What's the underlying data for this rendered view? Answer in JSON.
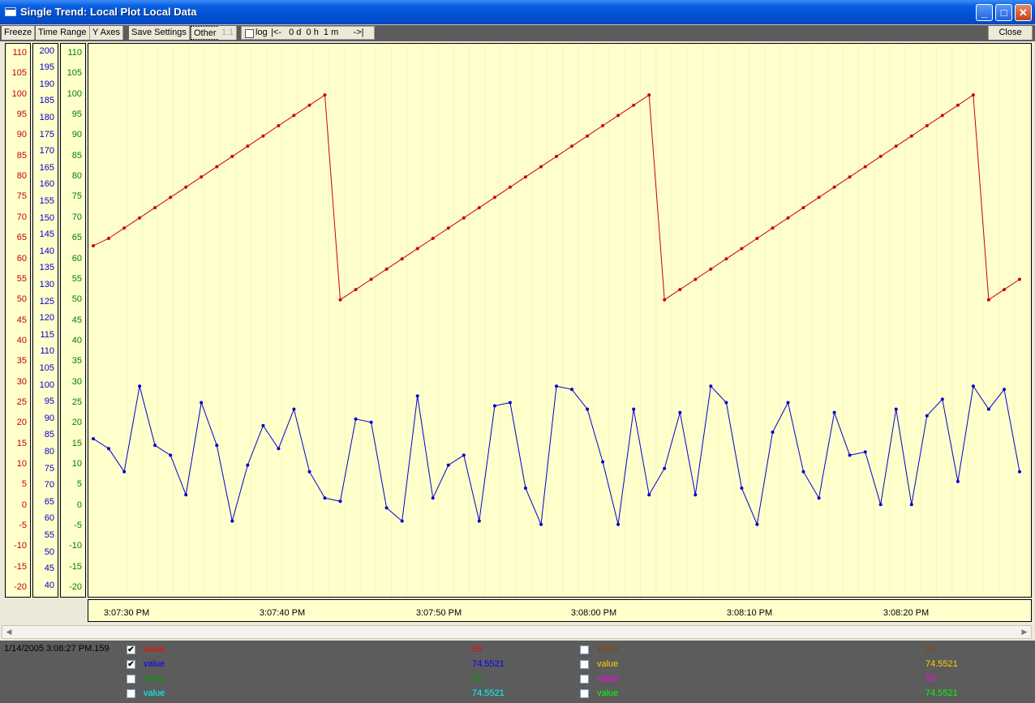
{
  "window": {
    "title": "Single Trend: Local Plot Local Data"
  },
  "toolbar": {
    "freeze": "Freeze",
    "time_range": "Time Range",
    "y_axes": "Y Axes",
    "save_settings": "Save Settings",
    "other": "Other",
    "one_to_one": "1:1",
    "log_label": "log",
    "range_text": "|<-   0 d  0 h  1 m      ->|",
    "close": "Close"
  },
  "axes": {
    "red": {
      "color": "#c00000",
      "labels": [
        "110",
        "105",
        "100",
        "95",
        "90",
        "85",
        "80",
        "75",
        "70",
        "65",
        "60",
        "55",
        "50",
        "45",
        "40",
        "35",
        "30",
        "25",
        "20",
        "15",
        "10",
        "5",
        "0",
        "-5",
        "-10",
        "-15",
        "-20"
      ]
    },
    "blue": {
      "color": "#0000cc",
      "labels": [
        "200",
        "195",
        "190",
        "185",
        "180",
        "175",
        "170",
        "165",
        "160",
        "155",
        "150",
        "145",
        "140",
        "135",
        "130",
        "125",
        "120",
        "115",
        "110",
        "105",
        "100",
        "95",
        "90",
        "85",
        "80",
        "75",
        "70",
        "65",
        "60",
        "55",
        "50",
        "45",
        "40"
      ]
    },
    "green": {
      "color": "#008000",
      "labels": [
        "110",
        "105",
        "100",
        "95",
        "90",
        "85",
        "80",
        "75",
        "70",
        "65",
        "60",
        "55",
        "50",
        "45",
        "40",
        "35",
        "30",
        "25",
        "20",
        "15",
        "10",
        "5",
        "0",
        "-5",
        "-10",
        "-15",
        "-20"
      ]
    }
  },
  "x_ticks": [
    "3:07:30 PM",
    "3:07:40 PM",
    "3:07:50 PM",
    "3:08:00 PM",
    "3:08:10 PM",
    "3:08:20 PM"
  ],
  "chart_data": {
    "type": "line",
    "xlabel": "",
    "ylabel": "",
    "x_ticks": [
      "3:07:30 PM",
      "3:07:40 PM",
      "3:07:50 PM",
      "3:08:00 PM",
      "3:08:10 PM",
      "3:08:20 PM"
    ],
    "series": [
      {
        "name": "value",
        "color": "#cc0000",
        "axis": "left-red",
        "ylim": [
          -22.5,
          112.5
        ],
        "values": [
          63.2,
          65,
          67.5,
          70,
          72.5,
          75,
          77.5,
          80,
          82.5,
          85,
          87.5,
          90,
          92.5,
          95,
          97.5,
          100,
          50,
          52.5,
          55,
          57.5,
          60,
          62.5,
          65,
          67.5,
          70,
          72.5,
          75,
          77.5,
          80,
          82.5,
          85,
          87.5,
          90,
          92.5,
          95,
          97.5,
          100,
          50,
          52.5,
          55,
          57.5,
          60,
          62.5,
          65,
          67.5,
          70,
          72.5,
          75,
          77.5,
          80,
          82.5,
          85,
          87.5,
          90,
          92.5,
          95,
          97.5,
          100,
          50,
          52.5,
          55
        ]
      },
      {
        "name": "value",
        "color": "#0000cc",
        "axis": "blue",
        "ylim": [
          36,
          204
        ],
        "values": [
          84,
          81,
          74,
          100,
          82,
          79,
          67,
          95,
          82,
          59,
          76,
          88,
          81,
          93,
          74,
          66,
          65,
          90,
          89,
          63,
          59,
          97,
          66,
          76,
          79,
          59,
          94,
          95,
          69,
          58,
          100,
          99,
          93,
          77,
          58,
          93,
          67,
          75,
          92,
          67,
          100,
          95,
          69,
          58,
          86,
          95,
          74,
          66,
          92,
          79,
          80,
          64,
          93,
          64,
          91,
          96,
          71,
          100,
          93,
          99,
          74
        ]
      }
    ]
  },
  "legend": {
    "timestamp": "1/14/2005 3:08:27 PM.159",
    "rows": [
      {
        "name": "value",
        "value": "55",
        "color": "#ff0000",
        "checked": true
      },
      {
        "name": "value",
        "value": "74.5521",
        "color": "#0000ff",
        "checked": true
      },
      {
        "name": "value",
        "value": "55",
        "color": "#009900",
        "checked": false
      },
      {
        "name": "value",
        "value": "74.5521",
        "color": "#00ffff",
        "checked": false
      },
      {
        "name": "value",
        "value": "55",
        "color": "#884400",
        "checked": false
      },
      {
        "name": "value",
        "value": "74.5521",
        "color": "#ffcc00",
        "checked": false
      },
      {
        "name": "value",
        "value": "55",
        "color": "#ff00ff",
        "checked": false
      },
      {
        "name": "value",
        "value": "74.5521",
        "color": "#00ff00",
        "checked": false
      }
    ]
  }
}
